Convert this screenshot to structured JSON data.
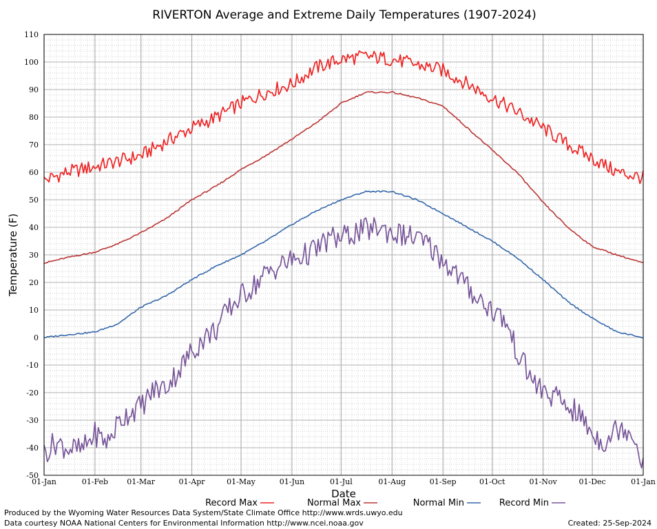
{
  "chart_data": {
    "type": "line",
    "title": "RIVERTON Average and Extreme Daily Temperatures (1907-2024)",
    "xlabel": "Date",
    "ylabel": "Temperature (F)",
    "ylim": [
      -50,
      110
    ],
    "yticks": [
      -50,
      -40,
      -30,
      -20,
      -10,
      0,
      10,
      20,
      30,
      40,
      50,
      60,
      70,
      80,
      90,
      100,
      110
    ],
    "xlim_day_of_year": [
      1,
      366
    ],
    "xticks": [
      {
        "label": "01-Jan",
        "day": 1
      },
      {
        "label": "01-Feb",
        "day": 32
      },
      {
        "label": "01-Mar",
        "day": 60
      },
      {
        "label": "01-Apr",
        "day": 91
      },
      {
        "label": "01-May",
        "day": 121
      },
      {
        "label": "01-Jun",
        "day": 152
      },
      {
        "label": "01-Jul",
        "day": 182
      },
      {
        "label": "01-Aug",
        "day": 213
      },
      {
        "label": "01-Sep",
        "day": 244
      },
      {
        "label": "01-Oct",
        "day": 274
      },
      {
        "label": "01-Nov",
        "day": 305
      },
      {
        "label": "01-Dec",
        "day": 335
      },
      {
        "label": "01-Jan",
        "day": 366
      }
    ],
    "grid": true,
    "legend_position": "bottom",
    "series": [
      {
        "name": "Record Max",
        "color": "#ee2222",
        "x": [
          1,
          15,
          32,
          46,
          60,
          75,
          91,
          106,
          121,
          136,
          152,
          167,
          182,
          197,
          213,
          228,
          244,
          259,
          274,
          289,
          305,
          320,
          335,
          350,
          366
        ],
        "y": [
          57,
          60,
          62,
          64,
          66,
          71,
          76,
          80,
          85,
          89,
          92,
          98,
          101,
          102,
          101,
          99,
          97,
          92,
          87,
          82,
          76,
          70,
          65,
          60,
          58
        ]
      },
      {
        "name": "Normal Max",
        "color": "#bb3333",
        "x": [
          1,
          15,
          32,
          46,
          60,
          75,
          91,
          106,
          121,
          136,
          152,
          167,
          182,
          197,
          213,
          228,
          244,
          259,
          274,
          289,
          305,
          320,
          335,
          350,
          366
        ],
        "y": [
          27,
          29,
          31,
          34,
          38,
          43,
          50,
          55,
          61,
          66,
          72,
          78,
          85,
          89,
          89,
          87,
          84,
          76,
          68,
          60,
          49,
          40,
          33,
          30,
          27
        ]
      },
      {
        "name": "Normal Min",
        "color": "#3366aa",
        "x": [
          1,
          15,
          32,
          46,
          60,
          75,
          91,
          106,
          121,
          136,
          152,
          167,
          182,
          197,
          213,
          228,
          244,
          259,
          274,
          289,
          305,
          320,
          335,
          350,
          366
        ],
        "y": [
          0,
          1,
          2,
          5,
          11,
          15,
          21,
          26,
          30,
          35,
          41,
          46,
          50,
          53,
          53,
          50,
          45,
          40,
          35,
          29,
          21,
          13,
          7,
          2,
          0
        ]
      },
      {
        "name": "Record Min",
        "color": "#775599",
        "x": [
          1,
          8,
          15,
          24,
          32,
          40,
          46,
          53,
          60,
          68,
          75,
          83,
          91,
          99,
          106,
          113,
          121,
          129,
          136,
          144,
          152,
          160,
          167,
          175,
          182,
          190,
          197,
          205,
          213,
          221,
          228,
          236,
          244,
          251,
          259,
          266,
          274,
          282,
          289,
          297,
          305,
          313,
          320,
          327,
          335,
          342,
          350,
          358,
          366
        ],
        "y": [
          -42,
          -38,
          -40,
          -41,
          -35,
          -38,
          -31,
          -27,
          -25,
          -19,
          -18,
          -12,
          -5,
          0,
          3,
          10,
          15,
          19,
          23,
          26,
          28,
          30,
          32,
          36,
          36,
          38,
          39,
          40,
          38,
          37,
          36,
          33,
          28,
          24,
          18,
          14,
          10,
          6,
          -5,
          -14,
          -20,
          -22,
          -25,
          -28,
          -35,
          -38,
          -33,
          -33,
          -45
        ]
      }
    ]
  },
  "legend": [
    {
      "label": "Record Max",
      "color": "#ee2222"
    },
    {
      "label": "Normal Max",
      "color": "#bb3333"
    },
    {
      "label": "Normal Min",
      "color": "#3366aa"
    },
    {
      "label": "Record Min",
      "color": "#775599"
    }
  ],
  "footer": {
    "line1": "Produced by the Wyoming Water Resources Data System/State Climate Office http://www.wrds.uwyo.edu",
    "line2": "Data courtesy NOAA National Centers for Environmental Information http://www.ncei.noaa.gov",
    "created": "Created:  25-Sep-2024"
  }
}
